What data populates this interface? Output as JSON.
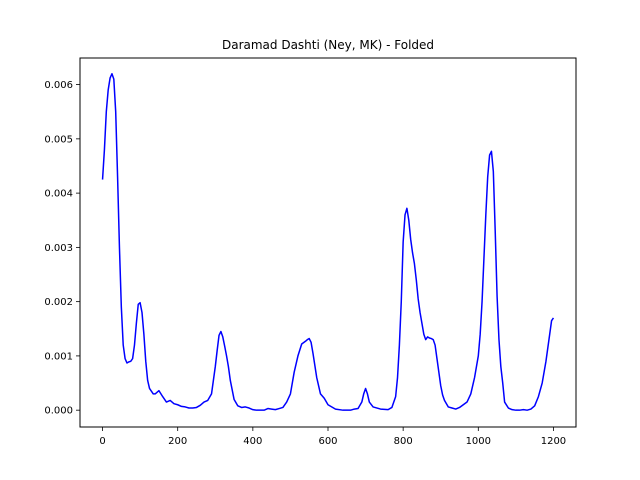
{
  "chart_data": {
    "type": "line",
    "title": "Daramad Dashti (Ney, MK) - Folded",
    "xlabel": "",
    "ylabel": "",
    "xlim": [
      -60,
      1260
    ],
    "ylim": [
      -0.00031,
      0.00649
    ],
    "x_ticks": [
      0,
      200,
      400,
      600,
      800,
      1000,
      1200
    ],
    "x_tick_labels": [
      "0",
      "200",
      "400",
      "600",
      "800",
      "1000",
      "1200"
    ],
    "y_ticks": [
      0.0,
      0.001,
      0.002,
      0.003,
      0.004,
      0.005,
      0.006
    ],
    "y_tick_labels": [
      "0.000",
      "0.001",
      "0.002",
      "0.003",
      "0.004",
      "0.005",
      "0.006"
    ],
    "grid": false,
    "line_color": "#0000ff",
    "series": [
      {
        "x": [
          0,
          5,
          10,
          15,
          20,
          25,
          30,
          35,
          40,
          45,
          50,
          55,
          60,
          65,
          70,
          75,
          80,
          85,
          90,
          95,
          100,
          105,
          110,
          115,
          120,
          125,
          130,
          135,
          140,
          145,
          150,
          160,
          170,
          180,
          190,
          200,
          210,
          220,
          230,
          240,
          250,
          260,
          270,
          280,
          290,
          300,
          305,
          310,
          315,
          320,
          325,
          330,
          335,
          340,
          350,
          360,
          370,
          380,
          390,
          400,
          410,
          420,
          430,
          440,
          450,
          460,
          470,
          480,
          490,
          500,
          510,
          520,
          530,
          540,
          545,
          550,
          555,
          560,
          570,
          580,
          590,
          600,
          620,
          640,
          660,
          670,
          680,
          690,
          695,
          700,
          705,
          710,
          720,
          740,
          760,
          770,
          780,
          785,
          790,
          795,
          800,
          805,
          810,
          815,
          820,
          825,
          830,
          835,
          840,
          845,
          850,
          855,
          860,
          865,
          870,
          875,
          880,
          885,
          890,
          895,
          900,
          905,
          910,
          920,
          930,
          940,
          950,
          960,
          970,
          980,
          990,
          1000,
          1005,
          1010,
          1015,
          1020,
          1025,
          1030,
          1035,
          1040,
          1045,
          1050,
          1055,
          1060,
          1065,
          1070,
          1080,
          1090,
          1100,
          1110,
          1120,
          1130,
          1140,
          1150,
          1160,
          1170,
          1180,
          1190,
          1195,
          1200
        ],
        "y": [
          0.00425,
          0.0048,
          0.0055,
          0.0059,
          0.00612,
          0.0062,
          0.0061,
          0.0055,
          0.0043,
          0.003,
          0.0019,
          0.0012,
          0.00095,
          0.00087,
          0.00089,
          0.0009,
          0.00095,
          0.0012,
          0.0016,
          0.00195,
          0.00198,
          0.0018,
          0.0014,
          0.0009,
          0.00055,
          0.0004,
          0.00035,
          0.0003,
          0.0003,
          0.00033,
          0.00036,
          0.00025,
          0.00015,
          0.00018,
          0.00012,
          0.0001,
          7e-05,
          6e-05,
          4e-05,
          4e-05,
          5e-05,
          9e-05,
          0.00015,
          0.00018,
          0.0003,
          0.0008,
          0.0011,
          0.00138,
          0.00145,
          0.00135,
          0.00118,
          0.001,
          0.0008,
          0.00055,
          0.0002,
          8e-05,
          5e-05,
          6e-05,
          4e-05,
          1e-05,
          0.0,
          0.0,
          0.0,
          3e-05,
          2e-05,
          1e-05,
          3e-05,
          5e-05,
          0.00015,
          0.0003,
          0.0007,
          0.001,
          0.00122,
          0.00127,
          0.0013,
          0.00132,
          0.00125,
          0.00105,
          0.0006,
          0.0003,
          0.00022,
          0.0001,
          2e-05,
          0.0,
          0.0,
          2e-05,
          3e-05,
          0.00015,
          0.0003,
          0.0004,
          0.0003,
          0.00015,
          6e-05,
          2e-05,
          1e-05,
          5e-05,
          0.00025,
          0.0006,
          0.0012,
          0.002,
          0.0031,
          0.0036,
          0.00372,
          0.0035,
          0.00315,
          0.0029,
          0.0027,
          0.0024,
          0.00205,
          0.0018,
          0.0016,
          0.0014,
          0.0013,
          0.00135,
          0.00133,
          0.00132,
          0.0013,
          0.0012,
          0.00095,
          0.0007,
          0.00045,
          0.00028,
          0.00018,
          6e-05,
          4e-05,
          2e-05,
          5e-05,
          0.0001,
          0.00015,
          0.0003,
          0.0006,
          0.001,
          0.0014,
          0.002,
          0.0028,
          0.0036,
          0.0043,
          0.0047,
          0.00477,
          0.0044,
          0.0033,
          0.0021,
          0.0013,
          0.0008,
          0.0005,
          0.00015,
          4e-05,
          1e-05,
          0.0,
          0.0,
          1e-05,
          0.0,
          2e-05,
          8e-05,
          0.00025,
          0.0005,
          0.0009,
          0.0014,
          0.00165,
          0.0017
        ]
      }
    ]
  }
}
